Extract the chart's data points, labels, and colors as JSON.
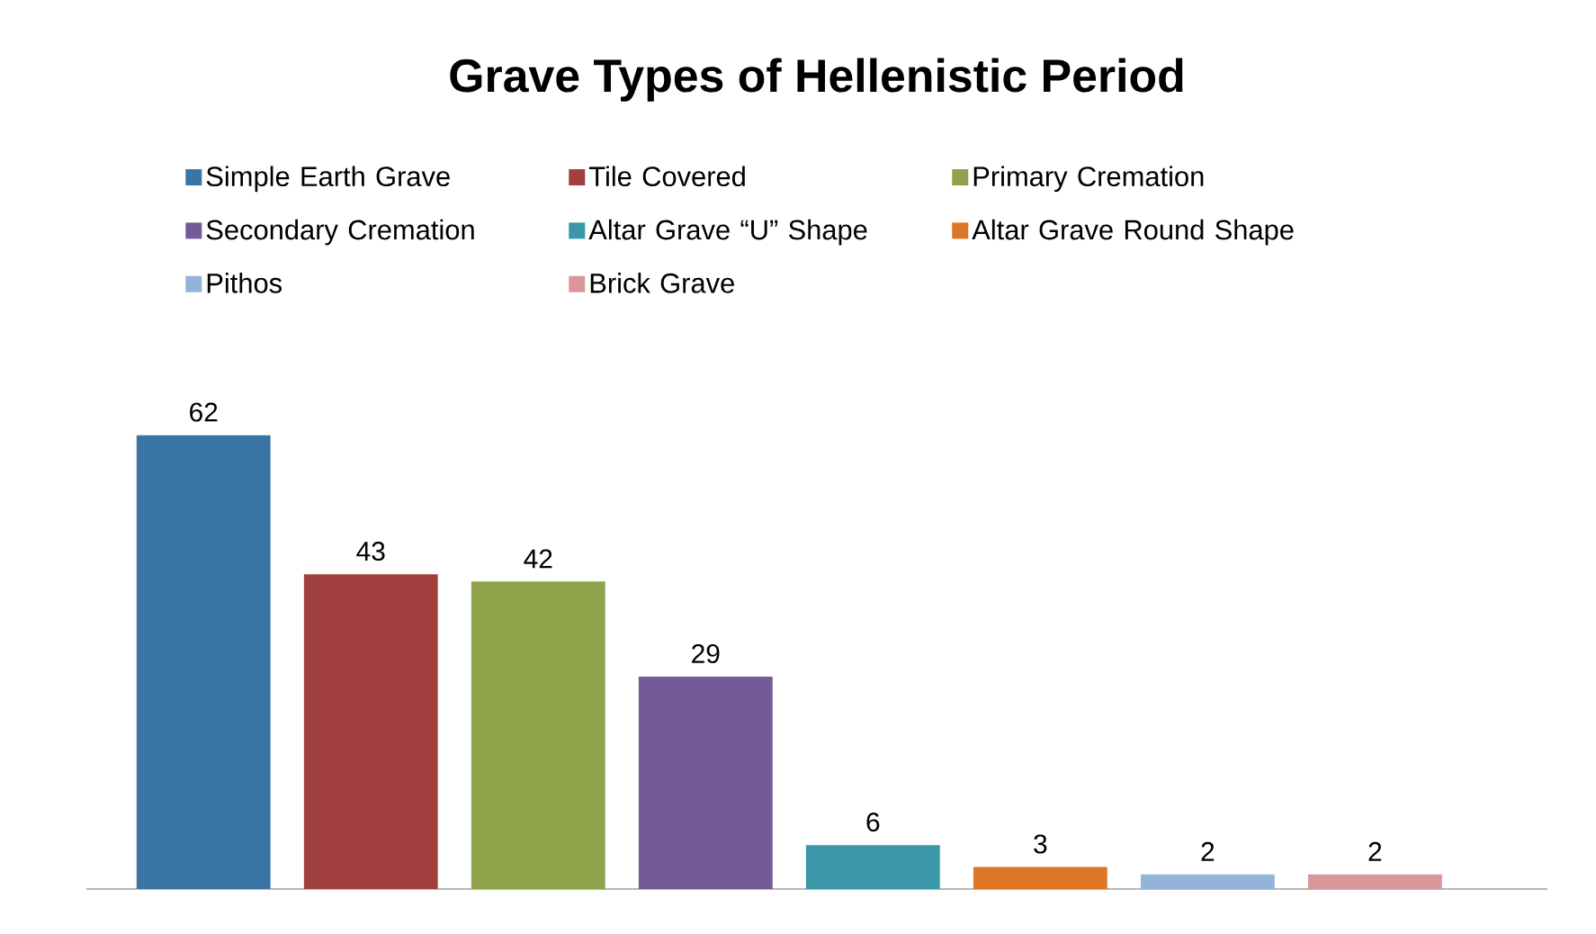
{
  "chart_data": {
    "type": "bar",
    "title": "Grave Types of Hellenistic Period",
    "categories": [
      null,
      null,
      null,
      null,
      null,
      null,
      null,
      null
    ],
    "series": [
      {
        "name": "Simple Earth Grave",
        "color": "#3a74a5",
        "values": [
          62,
          null,
          null,
          null,
          null,
          null,
          null,
          null
        ]
      },
      {
        "name": "Tile Covered",
        "color": "#a03f3d",
        "values": [
          null,
          43,
          null,
          null,
          null,
          null,
          null,
          null
        ]
      },
      {
        "name": "Primary Cremation",
        "color": "#8ea249",
        "values": [
          null,
          null,
          42,
          null,
          null,
          null,
          null,
          null
        ]
      },
      {
        "name": "Secondary Cremation",
        "color": "#735a99",
        "values": [
          null,
          null,
          null,
          29,
          null,
          null,
          null,
          null
        ]
      },
      {
        "name": "Altar Grave “U” Shape",
        "color": "#3a97a8",
        "values": [
          null,
          null,
          null,
          null,
          6,
          null,
          null,
          null
        ]
      },
      {
        "name": "Altar Grave Round Shape",
        "color": "#dd7726",
        "values": [
          null,
          null,
          null,
          null,
          null,
          3,
          null,
          null
        ]
      },
      {
        "name": "Pithos",
        "color": "#94b3d9",
        "values": [
          null,
          null,
          null,
          null,
          null,
          null,
          2,
          null
        ]
      },
      {
        "name": "Brick Grave",
        "color": "#d9979a",
        "values": [
          null,
          null,
          null,
          null,
          null,
          null,
          null,
          2
        ]
      }
    ],
    "stacked": true,
    "data_labels": true,
    "legend": "top"
  }
}
